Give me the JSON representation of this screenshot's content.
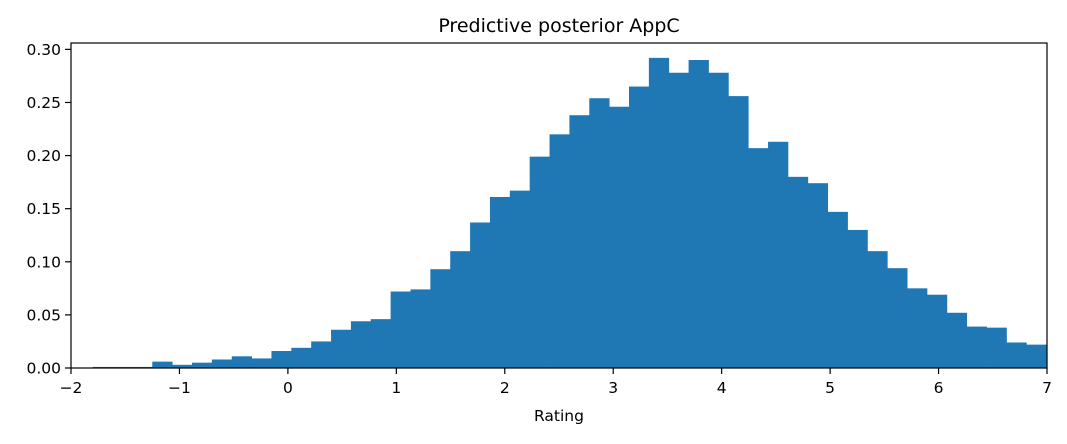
{
  "chart_data": {
    "type": "bar",
    "title": "Predictive posterior AppC",
    "xlabel": "Rating",
    "ylabel": "",
    "xlim": [
      -2,
      7
    ],
    "ylim": [
      0,
      0.306
    ],
    "grid": false,
    "xticks": [
      -2,
      -1,
      0,
      1,
      2,
      3,
      4,
      5,
      6,
      7
    ],
    "xtick_labels": [
      "−2",
      "−1",
      "0",
      "1",
      "2",
      "3",
      "4",
      "5",
      "6",
      "7"
    ],
    "yticks": [
      0,
      0.05,
      0.1,
      0.15,
      0.2,
      0.25,
      0.3
    ],
    "ytick_labels": [
      "0.00",
      "0.05",
      "0.10",
      "0.15",
      "0.20",
      "0.25",
      "0.30"
    ],
    "bar_color": "#1f77b4",
    "bin_edges": [
      -1.8,
      -1.6168,
      -1.4337,
      -1.2505,
      -1.0673,
      -0.8842,
      -0.701,
      -0.5178,
      -0.3347,
      -0.1515,
      0.0317,
      0.2148,
      0.398,
      0.5812,
      0.7643,
      0.9475,
      1.1307,
      1.3138,
      1.497,
      1.6802,
      1.8633,
      2.0465,
      2.2297,
      2.4128,
      2.596,
      2.7792,
      2.9623,
      3.1455,
      3.3287,
      3.5118,
      3.695,
      3.8782,
      4.0613,
      4.2445,
      4.4277,
      4.6108,
      4.794,
      4.9772,
      5.1603,
      5.3435,
      5.5267,
      5.7098,
      5.893,
      6.0762,
      6.2593,
      6.4425,
      6.6257,
      6.8088,
      6.992
    ],
    "values": [
      0.001,
      0.001,
      0.001,
      0.006,
      0.003,
      0.005,
      0.008,
      0.011,
      0.009,
      0.016,
      0.019,
      0.025,
      0.036,
      0.044,
      0.046,
      0.072,
      0.074,
      0.093,
      0.11,
      0.137,
      0.161,
      0.167,
      0.199,
      0.22,
      0.238,
      0.254,
      0.246,
      0.265,
      0.292,
      0.278,
      0.29,
      0.278,
      0.256,
      0.207,
      0.213,
      0.18,
      0.174,
      0.147,
      0.13,
      0.11,
      0.094,
      0.075,
      0.069,
      0.052,
      0.039,
      0.038,
      0.024,
      0.022
    ]
  }
}
